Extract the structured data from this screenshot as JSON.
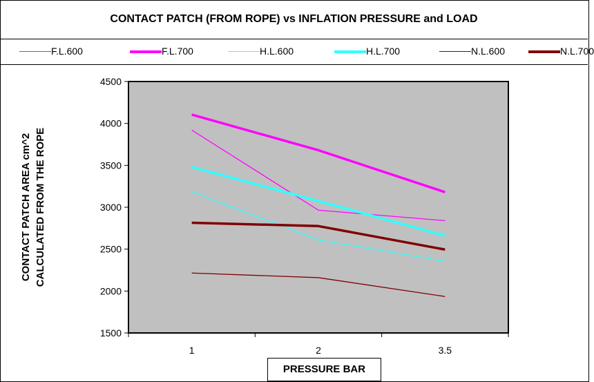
{
  "chart_data": {
    "type": "line",
    "title": "CONTACT PATCH (FROM ROPE) vs INFLATION PRESSURE and LOAD",
    "xlabel": "PRESSURE BAR",
    "ylabel_lines": [
      "CONTACT PATCH AREA cm^2",
      "CALCULATED FROM THE ROPE"
    ],
    "categories": [
      "1",
      "2",
      "3.5"
    ],
    "ylim": [
      1500,
      4500
    ],
    "yticks": [
      "1500",
      "2000",
      "2500",
      "3000",
      "3500",
      "4000",
      "4500"
    ],
    "legend_position": "top",
    "plot_background": "#C0C0C0",
    "grid": false,
    "series": [
      {
        "name": "F.L.600",
        "color": "#FF00FF",
        "bold": false,
        "values": [
          3920,
          2965,
          2840
        ]
      },
      {
        "name": "F.L.700",
        "color": "#FF00FF",
        "bold": true,
        "values": [
          4105,
          3680,
          3180
        ]
      },
      {
        "name": "H.L.600",
        "color": "#33FFFF",
        "bold": false,
        "values": [
          3185,
          2610,
          2355
        ]
      },
      {
        "name": "H.L.700",
        "color": "#33FFFF",
        "bold": true,
        "values": [
          3480,
          3075,
          2660
        ]
      },
      {
        "name": "N.L.600",
        "color": "#800000",
        "bold": false,
        "values": [
          2215,
          2160,
          1935
        ]
      },
      {
        "name": "N.L.700",
        "color": "#800000",
        "bold": true,
        "values": [
          2815,
          2775,
          2495
        ]
      }
    ]
  }
}
